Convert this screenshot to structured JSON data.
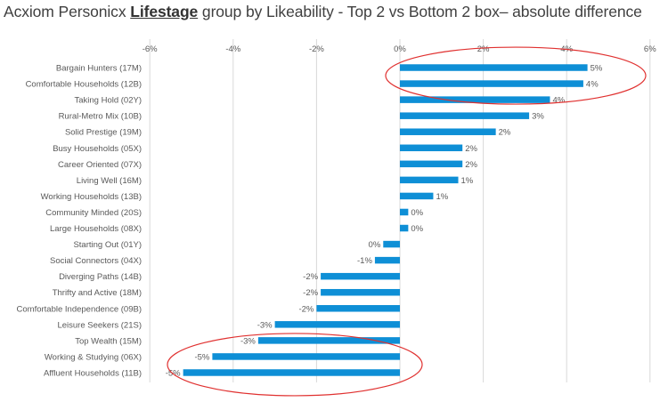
{
  "title": {
    "prefix": "Acxiom Personicx ",
    "emphasis": "Lifestage",
    "suffix": " group by Likeability - Top 2 vs Bottom 2 box– absolute difference"
  },
  "colors": {
    "bar": "#0e8fd6",
    "gridline": "#d9d9d9",
    "highlight_ellipse": "#e0302f",
    "text": "#595959"
  },
  "chart_data": {
    "type": "bar",
    "orientation": "horizontal",
    "title": "Acxiom Personicx Lifestage group by Likeability - Top 2 vs Bottom 2 box– absolute difference",
    "xlim": [
      -6,
      6
    ],
    "x_ticks": [
      -6,
      -4,
      -2,
      0,
      2,
      4,
      6
    ],
    "x_tick_labels": [
      "-6%",
      "-4%",
      "-2%",
      "0%",
      "2%",
      "4%",
      "6%"
    ],
    "x_axis_position": "top",
    "grid": true,
    "categories": [
      "Bargain Hunters (17M)",
      "Comfortable Households (12B)",
      "Taking Hold (02Y)",
      "Rural-Metro Mix (10B)",
      "Solid Prestige (19M)",
      "Busy Households (05X)",
      "Career Oriented (07X)",
      "Living Well (16M)",
      "Working Households (13B)",
      "Community Minded (20S)",
      "Large Households (08X)",
      "Starting Out (01Y)",
      "Social Connectors (04X)",
      "Diverging Paths (14B)",
      "Thrifty and Active (18M)",
      "Comfortable Independence (09B)",
      "Leisure Seekers (21S)",
      "Top Wealth (15M)",
      "Working & Studying (06X)",
      "Affluent Households (11B)"
    ],
    "values": [
      4.5,
      4.4,
      3.6,
      3.1,
      2.3,
      1.5,
      1.5,
      1.4,
      0.8,
      0.2,
      0.2,
      -0.4,
      -0.6,
      -1.9,
      -1.9,
      -2.0,
      -3.0,
      -3.4,
      -4.5,
      -5.2
    ],
    "data_labels": [
      "5%",
      "4%",
      "4%",
      "3%",
      "2%",
      "2%",
      "2%",
      "1%",
      "1%",
      "0%",
      "0%",
      "0%",
      "-1%",
      "-2%",
      "-2%",
      "-2%",
      "-3%",
      "-3%",
      "-5%",
      "-5%"
    ],
    "annotations": [
      {
        "type": "ellipse",
        "highlights": [
          "Bargain Hunters (17M)",
          "Comfortable Households (12B)"
        ]
      },
      {
        "type": "ellipse",
        "highlights": [
          "Working & Studying (06X)",
          "Affluent Households (11B)"
        ]
      }
    ]
  }
}
